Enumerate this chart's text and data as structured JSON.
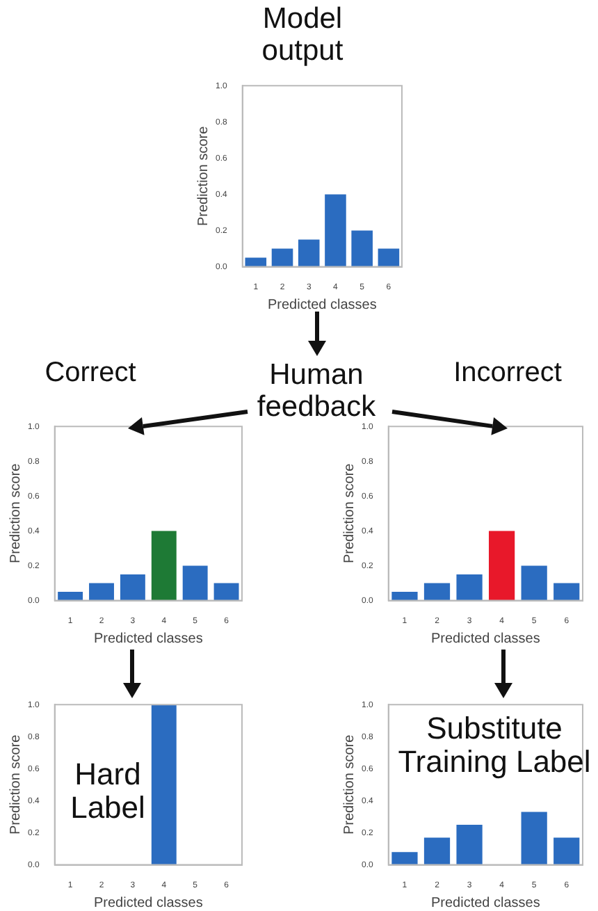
{
  "chart_data": [
    {
      "type": "bar",
      "title": "Model output",
      "annotations": [
        "Human feedback"
      ],
      "categories": [
        "1",
        "2",
        "3",
        "4",
        "5",
        "6"
      ],
      "values": [
        0.05,
        0.1,
        0.15,
        0.4,
        0.2,
        0.1
      ],
      "colors": [
        "#2b6cc0",
        "#2b6cc0",
        "#2b6cc0",
        "#2b6cc0",
        "#2b6cc0",
        "#2b6cc0"
      ],
      "xlabel": "Predicted classes",
      "ylabel": "Prediction score",
      "ylim": [
        0,
        1
      ],
      "yticks": [
        {
          "value": 0,
          "label": "0.0"
        },
        {
          "value": 0.2,
          "label": "0.2"
        },
        {
          "value": 0.4,
          "label": "0.4"
        },
        {
          "value": 0.6,
          "label": "0.6"
        },
        {
          "value": 0.8,
          "label": "0.8"
        },
        {
          "value": 1,
          "label": "1.0"
        }
      ],
      "grid": false
    },
    {
      "type": "bar",
      "title": "Correct",
      "categories": [
        "1",
        "2",
        "3",
        "4",
        "5",
        "6"
      ],
      "values": [
        0.05,
        0.1,
        0.15,
        0.4,
        0.2,
        0.1
      ],
      "colors": [
        "#2b6cc0",
        "#2b6cc0",
        "#2b6cc0",
        "#1e7a35",
        "#2b6cc0",
        "#2b6cc0"
      ],
      "xlabel": "Predicted classes",
      "ylabel": "Prediction score",
      "ylim": [
        0,
        1
      ],
      "yticks": [
        {
          "value": 0,
          "label": "0.0"
        },
        {
          "value": 0.2,
          "label": "0.2"
        },
        {
          "value": 0.4,
          "label": "0.4"
        },
        {
          "value": 0.6,
          "label": "0.6"
        },
        {
          "value": 0.8,
          "label": "0.8"
        },
        {
          "value": 1,
          "label": "1.0"
        }
      ],
      "grid": false
    },
    {
      "type": "bar",
      "title": "Incorrect",
      "categories": [
        "1",
        "2",
        "3",
        "4",
        "5",
        "6"
      ],
      "values": [
        0.05,
        0.1,
        0.15,
        0.4,
        0.2,
        0.1
      ],
      "colors": [
        "#2b6cc0",
        "#2b6cc0",
        "#2b6cc0",
        "#e8182a",
        "#2b6cc0",
        "#2b6cc0"
      ],
      "xlabel": "Predicted classes",
      "ylabel": "Prediction score",
      "ylim": [
        0,
        1
      ],
      "yticks": [
        {
          "value": 0,
          "label": "0.0"
        },
        {
          "value": 0.2,
          "label": "0.2"
        },
        {
          "value": 0.4,
          "label": "0.4"
        },
        {
          "value": 0.6,
          "label": "0.6"
        },
        {
          "value": 0.8,
          "label": "0.8"
        },
        {
          "value": 1,
          "label": "1.0"
        }
      ],
      "grid": false
    },
    {
      "type": "bar",
      "title": "Hard Label",
      "categories": [
        "1",
        "2",
        "3",
        "4",
        "5",
        "6"
      ],
      "values": [
        0,
        0,
        0,
        1,
        0,
        0
      ],
      "colors": [
        "#2b6cc0",
        "#2b6cc0",
        "#2b6cc0",
        "#2b6cc0",
        "#2b6cc0",
        "#2b6cc0"
      ],
      "xlabel": "Predicted classes",
      "ylabel": "Prediction score",
      "ylim": [
        0,
        1
      ],
      "yticks": [
        {
          "value": 0,
          "label": "0.0"
        },
        {
          "value": 0.2,
          "label": "0.2"
        },
        {
          "value": 0.4,
          "label": "0.4"
        },
        {
          "value": 0.6,
          "label": "0.6"
        },
        {
          "value": 0.8,
          "label": "0.8"
        },
        {
          "value": 1,
          "label": "1.0"
        }
      ],
      "grid": false
    },
    {
      "type": "bar",
      "title": "Substitute Training Label",
      "categories": [
        "1",
        "2",
        "3",
        "4",
        "5",
        "6"
      ],
      "values": [
        0.08,
        0.17,
        0.25,
        0,
        0.33,
        0.17
      ],
      "colors": [
        "#2b6cc0",
        "#2b6cc0",
        "#2b6cc0",
        "#2b6cc0",
        "#2b6cc0",
        "#2b6cc0"
      ],
      "xlabel": "Predicted classes",
      "ylabel": "Prediction score",
      "ylim": [
        0,
        1
      ],
      "yticks": [
        {
          "value": 0,
          "label": "0.0"
        },
        {
          "value": 0.2,
          "label": "0.2"
        },
        {
          "value": 0.4,
          "label": "0.4"
        },
        {
          "value": 0.6,
          "label": "0.6"
        },
        {
          "value": 0.8,
          "label": "0.8"
        },
        {
          "value": 1,
          "label": "1.0"
        }
      ],
      "grid": false
    }
  ]
}
